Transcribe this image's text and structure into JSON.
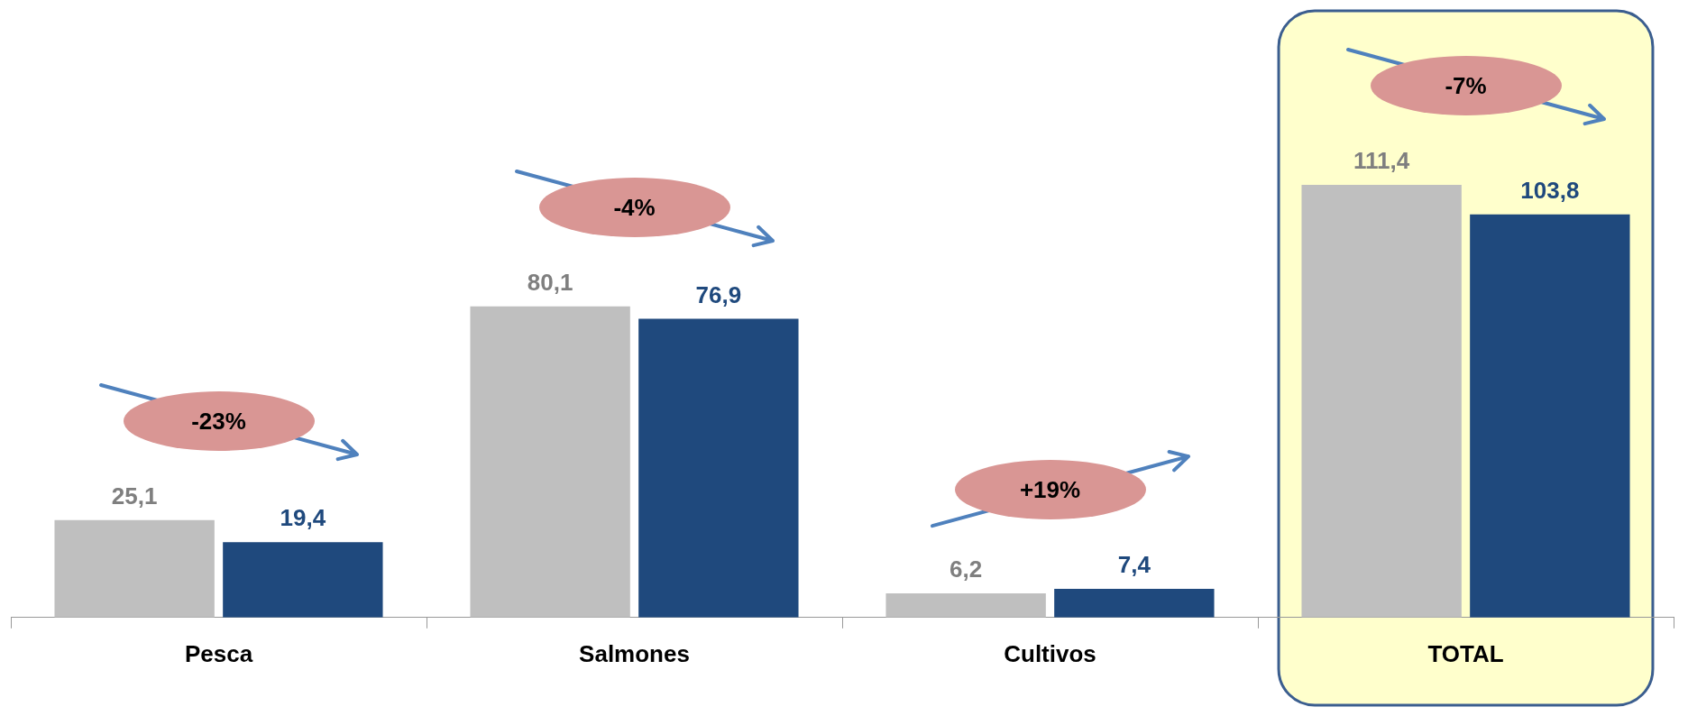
{
  "chart_data": {
    "type": "bar",
    "categories": [
      "Pesca",
      "Salmones",
      "Cultivos",
      "TOTAL"
    ],
    "grid": false,
    "legend": false,
    "series": [
      {
        "color": "#bfbfbf",
        "values": [
          25.1,
          80.1,
          6.2,
          111.4
        ],
        "value_labels": [
          "25,1",
          "80,1",
          "6,2",
          "111,4"
        ]
      },
      {
        "color": "#1f497d",
        "values": [
          19.4,
          76.9,
          7.4,
          103.8
        ],
        "value_labels": [
          "19,4",
          "76,9",
          "7,4",
          "103,8"
        ]
      }
    ],
    "annotations": [
      "-23%",
      "-4%",
      "+19%",
      "-7%"
    ],
    "bands": [
      {
        "axis": "x",
        "from": "TOTAL",
        "to": "TOTAL",
        "color": "#ffffcc"
      }
    ]
  }
}
